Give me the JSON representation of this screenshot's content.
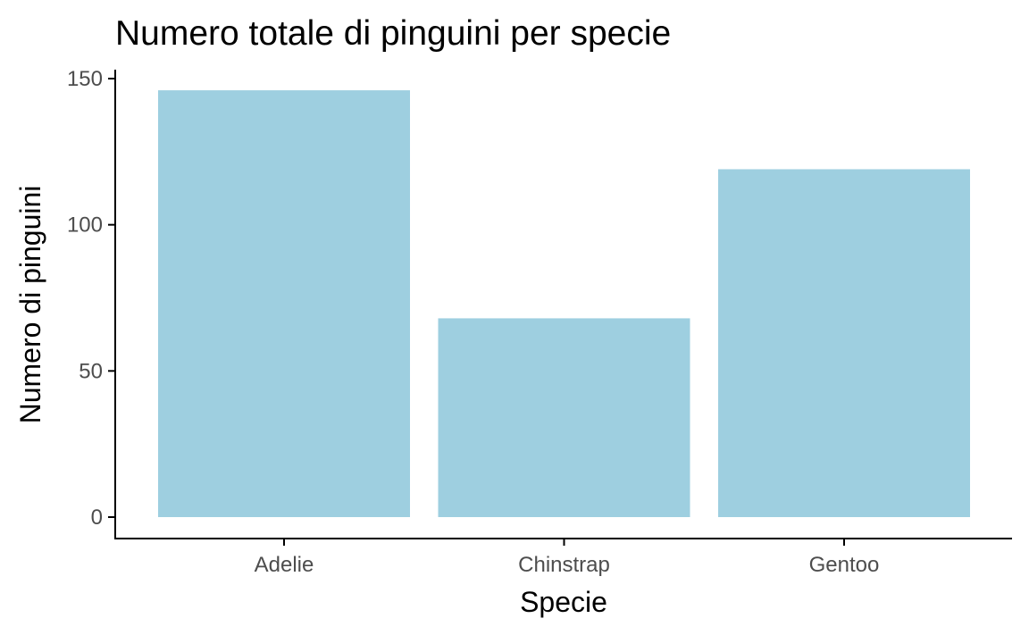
{
  "chart_data": {
    "type": "bar",
    "title": "Numero totale di pinguini per specie",
    "xlabel": "Specie",
    "ylabel": "Numero di pinguini",
    "categories": [
      "Adelie",
      "Chinstrap",
      "Gentoo"
    ],
    "values": [
      146,
      68,
      119
    ],
    "ylim": [
      0,
      153.3
    ],
    "yticks": [
      0,
      50,
      100,
      150
    ],
    "yticklabels": [
      "0",
      "50",
      "100",
      "150"
    ],
    "grid": false,
    "legend": "none",
    "bar_color": "#9ECFE0"
  }
}
